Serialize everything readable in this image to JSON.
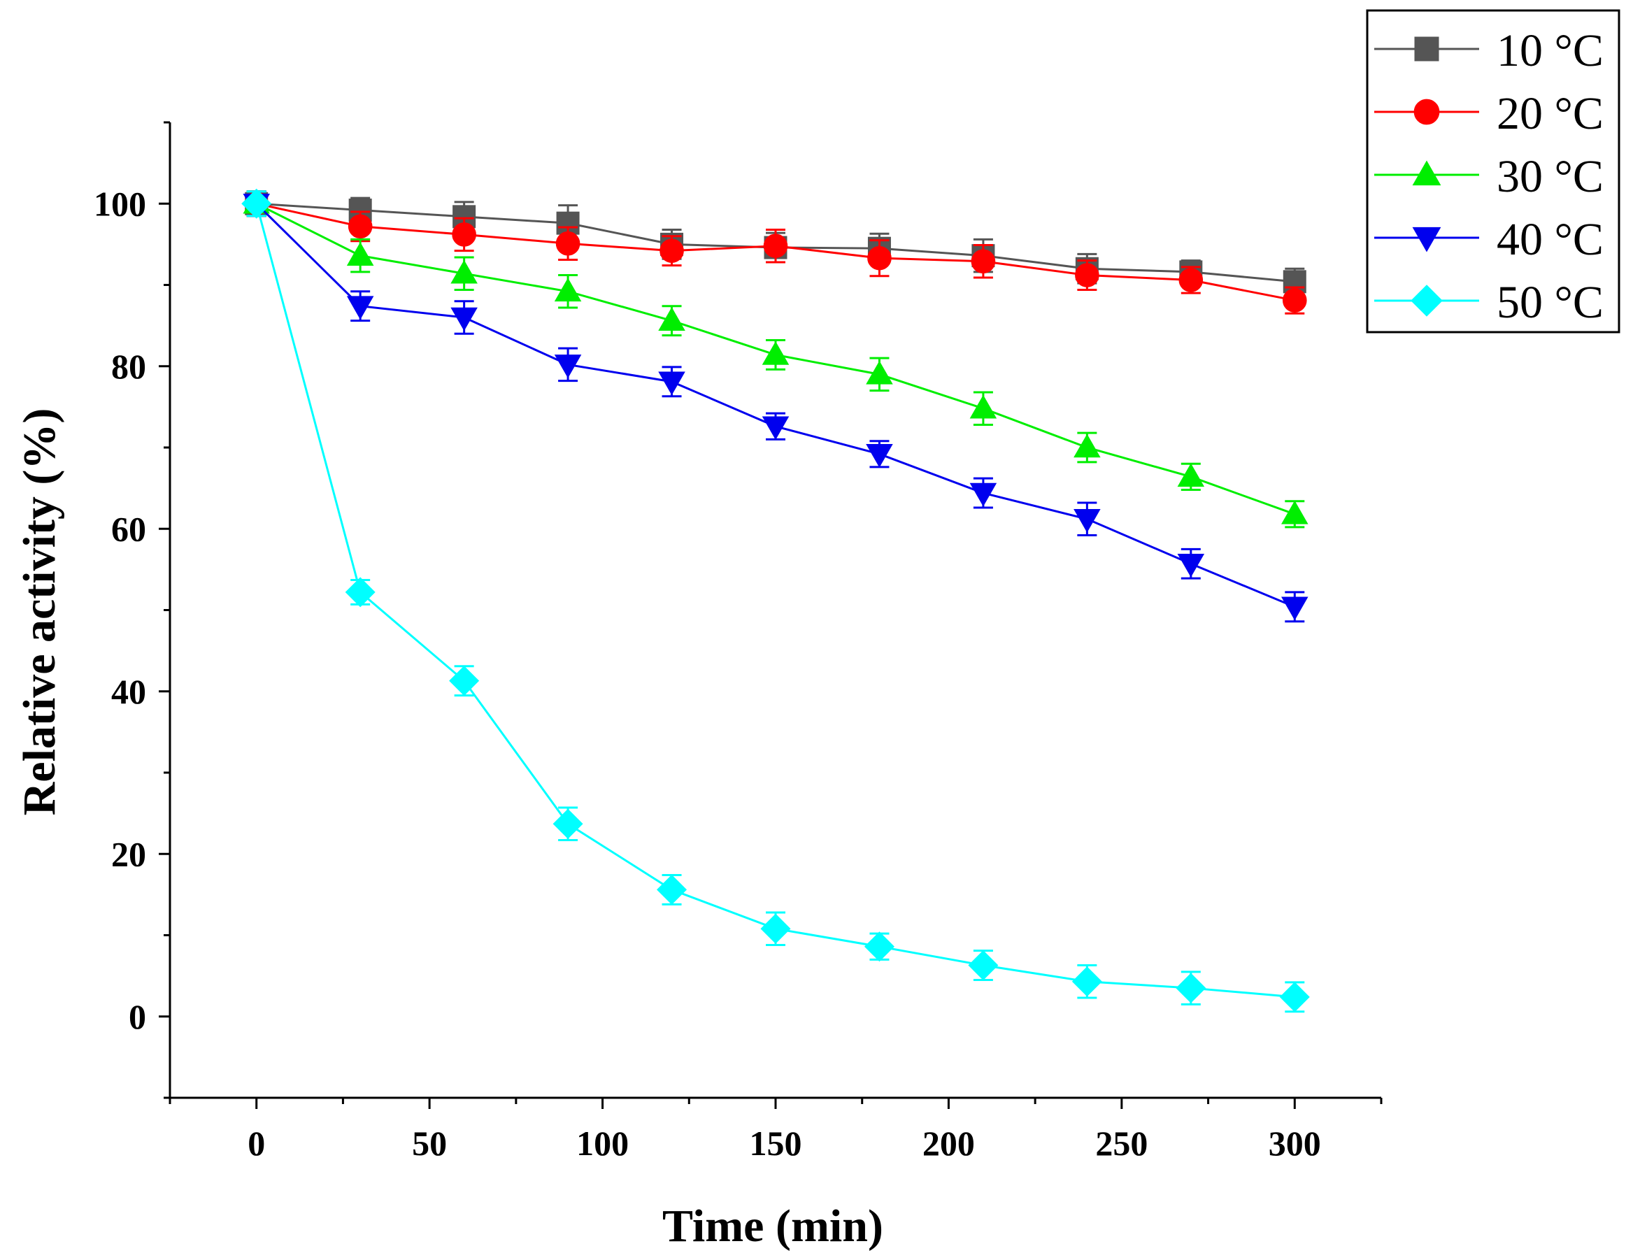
{
  "chart_data": {
    "type": "line",
    "title": "",
    "xlabel": "Time (min)",
    "ylabel": "Relative activity (%)",
    "xlim": [
      -25,
      325
    ],
    "ylim": [
      -10,
      110
    ],
    "xticks": [
      0,
      50,
      100,
      150,
      200,
      250,
      300
    ],
    "yticks": [
      0,
      20,
      40,
      60,
      80,
      100
    ],
    "x": [
      0,
      30,
      60,
      90,
      120,
      150,
      180,
      210,
      240,
      270,
      300
    ],
    "legend_position": "top-right",
    "series": [
      {
        "name": "10 °C",
        "color": "#555555",
        "marker": "square",
        "values": [
          100,
          99.2,
          98.4,
          97.6,
          95,
          94.6,
          94.5,
          93.6,
          92,
          91.6,
          90.4
        ],
        "errors": [
          1.5,
          1.5,
          1.8,
          2.2,
          1.8,
          1.8,
          1.8,
          2,
          1.8,
          1.4,
          1.6
        ]
      },
      {
        "name": "20 °C",
        "color": "#ff0000",
        "marker": "circle",
        "values": [
          100,
          97.2,
          96.2,
          95.1,
          94.2,
          94.8,
          93.3,
          92.9,
          91.2,
          90.6,
          88.1
        ],
        "errors": [
          1.5,
          1.8,
          2,
          2,
          1.8,
          2,
          2.2,
          2,
          1.8,
          1.6,
          1.6
        ]
      },
      {
        "name": "30 °C",
        "color": "#00ee00",
        "marker": "triangle-up",
        "values": [
          100,
          93.6,
          91.4,
          89.2,
          85.6,
          81.4,
          79,
          74.8,
          70,
          66.4,
          61.8
        ],
        "errors": [
          1.5,
          2,
          2,
          2,
          1.8,
          1.8,
          2,
          2,
          1.8,
          1.6,
          1.6
        ]
      },
      {
        "name": "40 °C",
        "color": "#0000ee",
        "marker": "triangle-down",
        "values": [
          100,
          87.4,
          86,
          80.2,
          78.1,
          72.6,
          69.2,
          64.4,
          61.2,
          55.7,
          50.4
        ],
        "errors": [
          1.5,
          1.8,
          2,
          2,
          1.8,
          1.6,
          1.6,
          1.8,
          2,
          1.8,
          1.8
        ]
      },
      {
        "name": "50 °C",
        "color": "#00ffff",
        "marker": "diamond",
        "values": [
          100,
          52.2,
          41.3,
          23.7,
          15.6,
          10.8,
          8.6,
          6.3,
          4.3,
          3.5,
          2.4
        ],
        "errors": [
          1.5,
          1.5,
          1.8,
          2,
          1.8,
          2,
          1.6,
          1.8,
          2,
          2,
          1.8
        ]
      }
    ]
  }
}
